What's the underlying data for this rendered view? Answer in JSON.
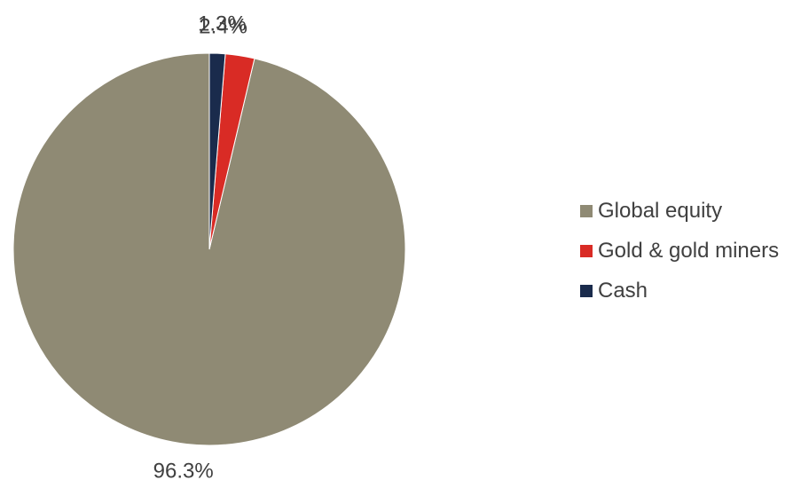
{
  "chart_data": {
    "type": "pie",
    "slices": [
      {
        "label": "Global equity",
        "value": 96.3,
        "display": "96.3%",
        "color": "#8f8a74"
      },
      {
        "label": "Gold & gold miners",
        "value": 2.4,
        "display": "2.4%",
        "color": "#d92b25"
      },
      {
        "label": "Cash",
        "value": 1.3,
        "display": "1.3%",
        "color": "#1a2b4c"
      }
    ],
    "start": "12 o'clock",
    "direction": "counterclockwise",
    "legend_position": "right"
  }
}
